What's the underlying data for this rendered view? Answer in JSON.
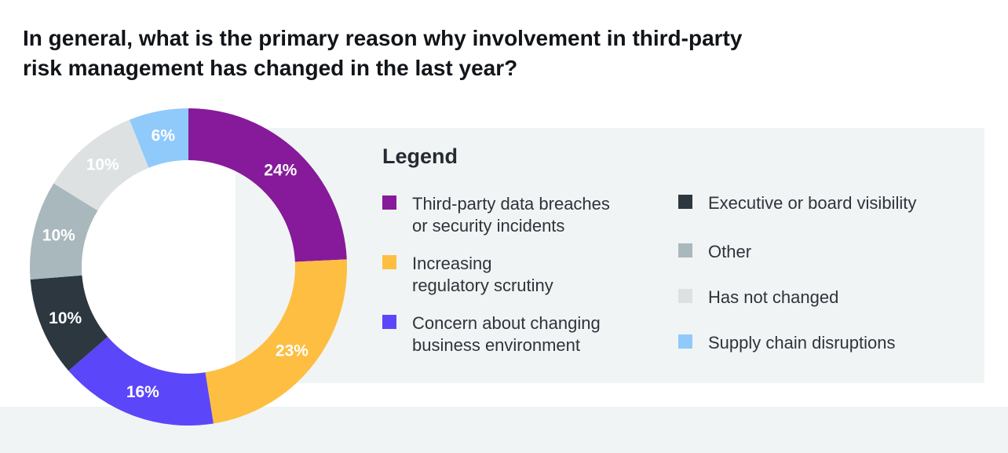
{
  "title_lines": [
    "In general, what is the primary reason why involvement in third-party",
    "risk management has changed in the last year?"
  ],
  "legend": {
    "title": "Legend",
    "items": [
      {
        "lines": [
          "Third-party data breaches",
          "or security incidents"
        ],
        "color": "#861a9a"
      },
      {
        "lines": [
          "Increasing",
          "regulatory scrutiny"
        ],
        "color": "#fdbe41"
      },
      {
        "lines": [
          "Concern about changing",
          "business environment"
        ],
        "color": "#5c46f9"
      },
      {
        "lines": [
          "Executive or board visibility"
        ],
        "color": "#2c373f"
      },
      {
        "lines": [
          "Other"
        ],
        "color": "#a9b8bd"
      },
      {
        "lines": [
          "Has not changed"
        ],
        "color": "#dde1e2"
      },
      {
        "lines": [
          "Supply chain disruptions"
        ],
        "color": "#8fcafb"
      }
    ]
  },
  "chart_data": {
    "type": "pie",
    "style": "donut",
    "title": "",
    "slices": [
      {
        "label": "Third-party data breaches or security incidents",
        "value": 24,
        "display": "24%",
        "color": "#861a9a"
      },
      {
        "label": "Increasing regulatory scrutiny",
        "value": 23,
        "display": "23%",
        "color": "#fdbe41"
      },
      {
        "label": "Concern about changing business environment",
        "value": 16,
        "display": "16%",
        "color": "#5c46f9"
      },
      {
        "label": "Executive or board visibility",
        "value": 10,
        "display": "10%",
        "color": "#2c373f"
      },
      {
        "label": "Other",
        "value": 10,
        "display": "10%",
        "color": "#a9b8bd"
      },
      {
        "label": "Has not changed",
        "value": 10,
        "display": "10%",
        "color": "#dde1e2"
      },
      {
        "label": "Supply chain disruptions",
        "value": 6,
        "display": "6%",
        "color": "#8fcafb"
      }
    ],
    "start_angle": "12 o'clock",
    "direction": "clockwise",
    "legend_position": "right"
  }
}
